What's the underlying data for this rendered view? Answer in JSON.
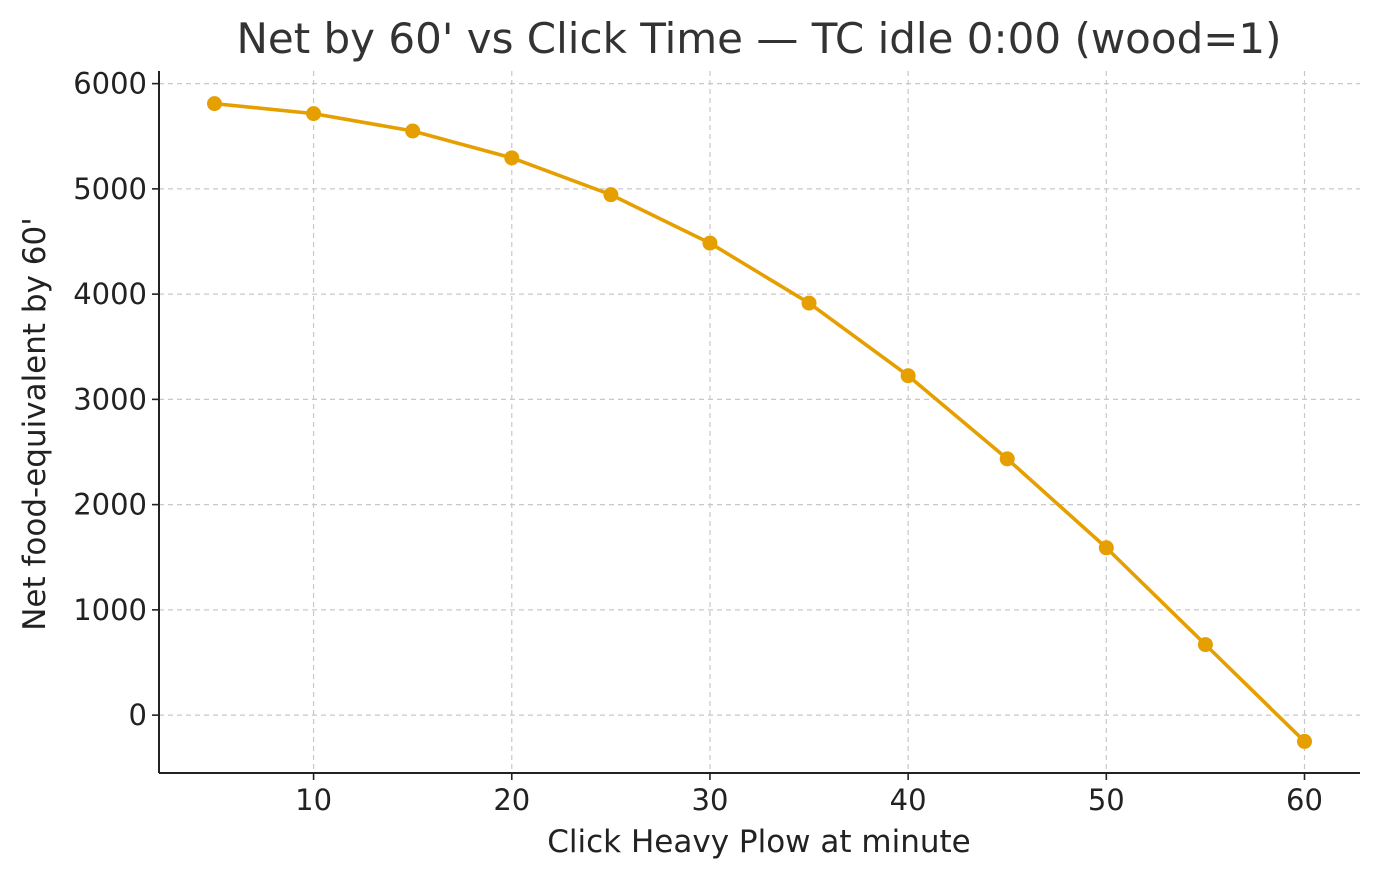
{
  "chart_data": {
    "type": "line",
    "title": "Net by 60' vs Click Time — TC idle 0:00 (wood=1)",
    "xlabel": "Click Heavy Plow at minute",
    "ylabel": "Net food-equivalent by 60'",
    "xlim": [
      2.2,
      62.8
    ],
    "ylim": [
      -550,
      6120
    ],
    "xticks": [
      10,
      20,
      30,
      40,
      50,
      60
    ],
    "yticks": [
      0,
      1000,
      2000,
      3000,
      4000,
      5000,
      6000
    ],
    "grid": true,
    "series": [
      {
        "color": "#E69F00",
        "x": [
          5,
          10,
          15,
          20,
          25,
          30,
          35,
          40,
          45,
          50,
          55,
          60
        ],
        "y": [
          5810,
          5715,
          5550,
          5295,
          4945,
          4485,
          3915,
          3225,
          2435,
          1590,
          670,
          -250
        ]
      }
    ]
  }
}
